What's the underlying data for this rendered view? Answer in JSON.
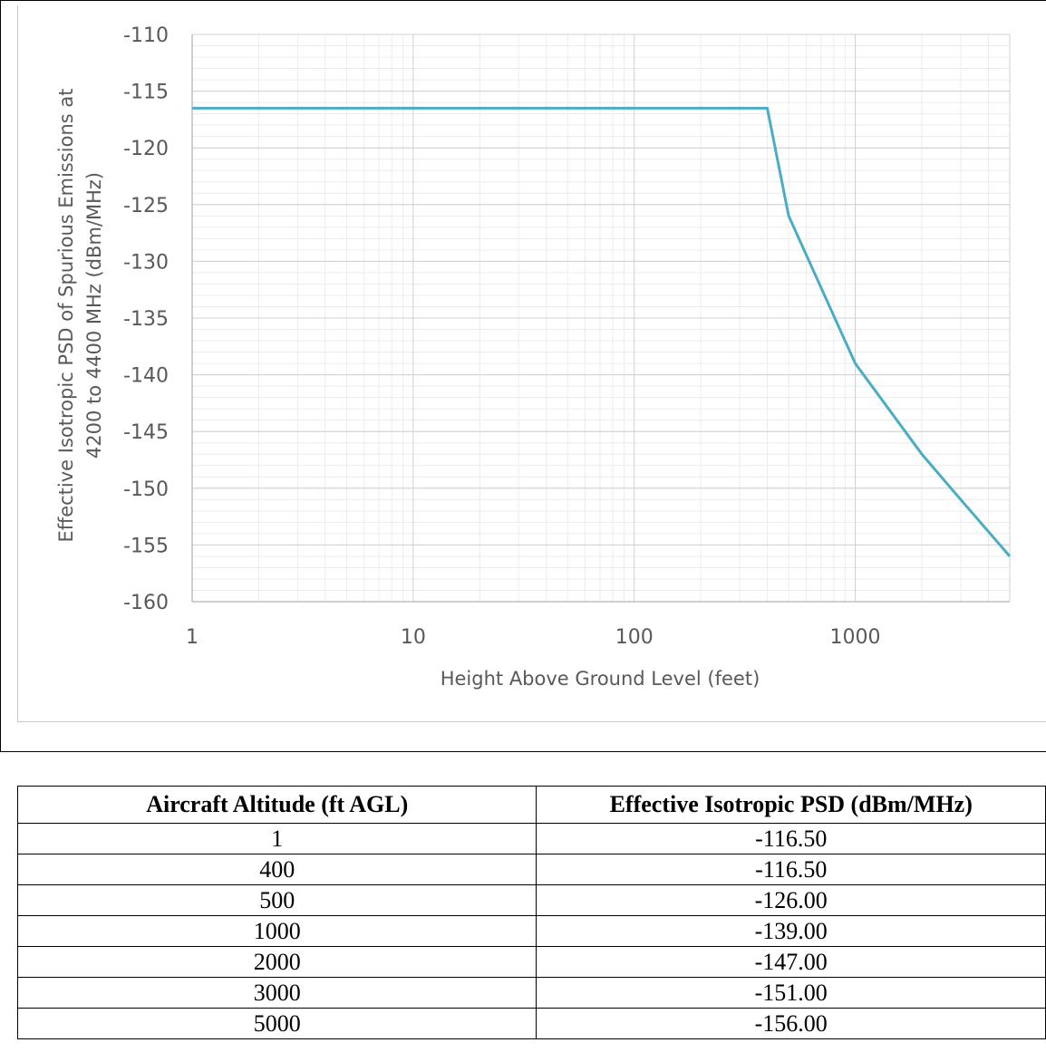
{
  "chart_data": {
    "type": "line",
    "xscale": "log",
    "xlabel": "Height Above Ground Level (feet)",
    "ylabel_line1": "Effective Isotropic PSD of Spurious Emissions at",
    "ylabel_line2": "4200 to 4400 MHz (dBm/MHz)",
    "xlim": [
      1,
      5000
    ],
    "ylim": [
      -160,
      -110
    ],
    "x_ticks": [
      1,
      10,
      100,
      1000
    ],
    "x_tick_labels": [
      "1",
      "10",
      "100",
      "1000"
    ],
    "y_ticks": [
      -110,
      -115,
      -120,
      -125,
      -130,
      -135,
      -140,
      -145,
      -150,
      -155,
      -160
    ],
    "y_tick_labels": [
      "-110",
      "-115",
      "-120",
      "-125",
      "-130",
      "-135",
      "-140",
      "-145",
      "-150",
      "-155",
      "-160"
    ],
    "grid": true,
    "line_color": "#4bacc6",
    "series": [
      {
        "x": [
          1,
          400,
          500,
          1000,
          2000,
          3000,
          5000
        ],
        "y": [
          -116.5,
          -116.5,
          -126.0,
          -139.0,
          -147.0,
          -151.0,
          -156.0
        ]
      }
    ]
  },
  "table": {
    "headers": [
      "Aircraft Altitude (ft AGL)",
      "Effective Isotropic PSD (dBm/MHz)"
    ],
    "rows": [
      [
        "1",
        "-116.50"
      ],
      [
        "400",
        "-116.50"
      ],
      [
        "500",
        "-126.00"
      ],
      [
        "1000",
        "-139.00"
      ],
      [
        "2000",
        "-147.00"
      ],
      [
        "3000",
        "-151.00"
      ],
      [
        "5000",
        "-156.00"
      ]
    ]
  }
}
